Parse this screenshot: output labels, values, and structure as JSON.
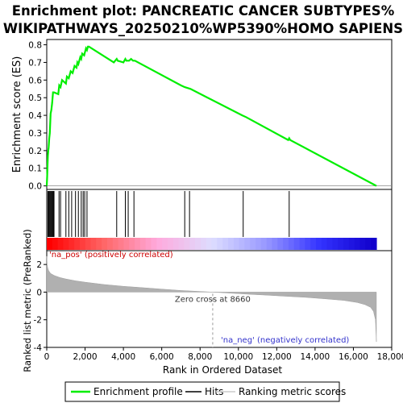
{
  "chart_data": {
    "type": "line",
    "title_lines": [
      "Enrichment plot: PANCREATIC CANCER SUBTYPES%",
      "WIKIPATHWAYS_20250210%WP5390%HOMO SAPIENS"
    ],
    "es_panel": {
      "ylabel": "Enrichment score (ES)",
      "ylim": [
        -0.02,
        0.83
      ],
      "yticks": [
        0.0,
        0.1,
        0.2,
        0.3,
        0.4,
        0.5,
        0.6,
        0.7,
        0.8
      ],
      "ytick_labels": [
        "0.0",
        "0.1",
        "0.2",
        "0.3",
        "0.4",
        "0.5",
        "0.6",
        "0.7",
        "0.8"
      ],
      "series": [
        {
          "name": "Enrichment profile",
          "color": "#00ee00",
          "x": [
            0,
            20,
            40,
            60,
            80,
            100,
            130,
            160,
            200,
            240,
            280,
            330,
            380,
            600,
            650,
            720,
            800,
            1000,
            1050,
            1150,
            1250,
            1350,
            1450,
            1550,
            1600,
            1650,
            1750,
            1800,
            1850,
            1950,
            2050,
            2100,
            2150,
            2200,
            3500,
            3650,
            3700,
            4000,
            4100,
            4150,
            4300,
            4400,
            4500,
            4550,
            4600,
            7000,
            7200,
            7500,
            10200,
            10400,
            12600,
            12650,
            12700,
            17200
          ],
          "y": [
            0.0,
            0.05,
            0.12,
            0.17,
            0.2,
            0.22,
            0.27,
            0.3,
            0.41,
            0.43,
            0.47,
            0.53,
            0.53,
            0.52,
            0.57,
            0.56,
            0.6,
            0.58,
            0.62,
            0.61,
            0.65,
            0.64,
            0.68,
            0.67,
            0.7,
            0.69,
            0.73,
            0.72,
            0.75,
            0.74,
            0.78,
            0.77,
            0.79,
            0.79,
            0.7,
            0.72,
            0.71,
            0.7,
            0.72,
            0.71,
            0.71,
            0.72,
            0.71,
            0.71,
            0.71,
            0.57,
            0.56,
            0.55,
            0.4,
            0.39,
            0.26,
            0.27,
            0.26,
            0.0
          ]
        }
      ]
    },
    "hits_panel": {
      "positions": [
        60,
        100,
        140,
        180,
        220,
        260,
        300,
        340,
        380,
        640,
        720,
        1000,
        1150,
        1300,
        1500,
        1650,
        1800,
        1900,
        1980,
        2100,
        3650,
        4100,
        4250,
        4550,
        7200,
        7450,
        10250,
        12650
      ],
      "color_gradient": [
        "#ff0000",
        "#ff6666",
        "#ffaadd",
        "#ddddff",
        "#9999ff",
        "#3333ff",
        "#1100cc"
      ]
    },
    "metric_panel": {
      "ylabel": "Ranked list metric (PreRanked)",
      "ylim": [
        -4,
        3
      ],
      "yticks": [
        2,
        0,
        -2,
        -4
      ],
      "ytick_labels": [
        "2",
        "0",
        "-2",
        "-4"
      ],
      "pos_label": "'na_pos' (positively correlated)",
      "neg_label": "'na_neg' (negatively correlated)",
      "zero_cross_label": "Zero cross at 8660",
      "zero_cross": 8660,
      "curve_x": [
        0,
        20,
        50,
        100,
        200,
        400,
        700,
        1000,
        1500,
        2000,
        3000,
        4000,
        5000,
        6000,
        7000,
        8000,
        8660,
        9500,
        10500,
        11500,
        12500,
        13500,
        14500,
        15500,
        16200,
        16600,
        16900,
        17050,
        17150,
        17200
      ],
      "curve_y": [
        2.6,
        2.0,
        1.75,
        1.55,
        1.35,
        1.2,
        1.05,
        0.95,
        0.82,
        0.72,
        0.55,
        0.42,
        0.32,
        0.22,
        0.12,
        0.05,
        0.0,
        -0.07,
        -0.15,
        -0.22,
        -0.3,
        -0.38,
        -0.48,
        -0.6,
        -0.75,
        -0.9,
        -1.1,
        -1.4,
        -2.0,
        -3.6
      ]
    },
    "x_axis": {
      "label": "Rank in Ordered Dataset",
      "xlim": [
        0,
        18000
      ],
      "xticks": [
        0,
        2000,
        4000,
        6000,
        8000,
        10000,
        12000,
        14000,
        16000,
        18000
      ],
      "xtick_labels": [
        "0",
        "2,000",
        "4,000",
        "6,000",
        "8,000",
        "10,000",
        "12,000",
        "14,000",
        "16,000",
        "18,000"
      ],
      "n_genes": 17200
    },
    "legend": {
      "placement": "bottom",
      "entries": [
        {
          "label": "Enrichment profile",
          "color": "#00ee00"
        },
        {
          "label": "Hits",
          "color": "#000000"
        },
        {
          "label": "Ranking metric scores",
          "color": "#cccccc"
        }
      ]
    }
  }
}
